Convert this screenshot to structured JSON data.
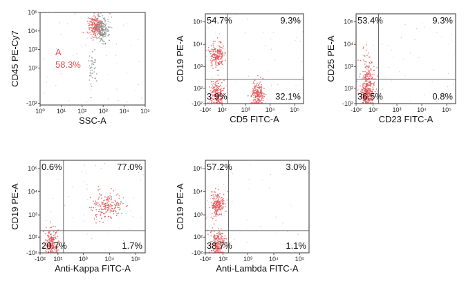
{
  "chart_data": [
    {
      "type": "scatter",
      "xlabel": "SSC-A",
      "ylabel": "CD45 PE-Cy7",
      "x_scale": "log",
      "y_scale": "log",
      "x_ticks": [
        "10⁰",
        "10¹",
        "10²",
        "10³",
        "10⁴",
        "10⁵"
      ],
      "y_ticks": [
        "10⁵",
        "10⁴",
        "10³",
        "10²",
        "-10²"
      ],
      "gate": {
        "name": "A",
        "value": "58.3%"
      },
      "clusters": [
        {
          "x": 420,
          "y": 18000,
          "color": "#e05050",
          "label": "A"
        },
        {
          "x": 900,
          "y": 12000,
          "color": "#888888"
        },
        {
          "x": 300,
          "y": 130,
          "color": "#888888"
        }
      ]
    },
    {
      "type": "scatter",
      "xlabel": "CD5 FITC-A",
      "ylabel": "CD19 PE-A",
      "x_ticks": [
        "-10²",
        "10²",
        "10³",
        "10⁴",
        "10⁵"
      ],
      "y_ticks": [
        "10⁵",
        "10⁴",
        "10³",
        "10²",
        "-10²"
      ],
      "quadrants": {
        "top_left": "54.7%",
        "top_right": "9.3%",
        "bottom_left": "3.9%",
        "bottom_right": "32.1%"
      },
      "clusters": [
        {
          "x": 40,
          "y": 3000
        },
        {
          "x": 3000,
          "y": 30
        },
        {
          "x": 40,
          "y": 30
        }
      ]
    },
    {
      "type": "scatter",
      "xlabel": "CD23 FITC-A",
      "ylabel": "CD25 PE-A",
      "x_ticks": [
        "-10²",
        "10²",
        "10³",
        "10⁴",
        "10⁵"
      ],
      "y_ticks": [
        "10⁵",
        "10⁴",
        "10³",
        "10²",
        "-10²"
      ],
      "quadrants": {
        "top_left": "53.4%",
        "top_right": "9.3%",
        "bottom_left": "36.5%",
        "bottom_right": "0.8%"
      },
      "clusters": [
        {
          "x": 40,
          "y": 250
        },
        {
          "x": 30,
          "y": 30
        }
      ]
    },
    {
      "type": "scatter",
      "xlabel": "Anti-Kappa FITC-A",
      "ylabel": "CD19 PE-A",
      "x_ticks": [
        "-10²",
        "10²",
        "10³",
        "10⁴",
        "10⁵"
      ],
      "y_ticks": [
        "10⁵",
        "10⁴",
        "10³",
        "10²",
        "-10²"
      ],
      "quadrants": {
        "top_left": "0.6%",
        "top_right": "77.0%",
        "bottom_left": "20.7%",
        "bottom_right": "1.7%"
      },
      "clusters": [
        {
          "x": 8000,
          "y": 2500
        },
        {
          "x": 30,
          "y": 30
        }
      ]
    },
    {
      "type": "scatter",
      "xlabel": "Anti-Lambda FITC-A",
      "ylabel": "CD19 PE-A",
      "x_ticks": [
        "-10²",
        "10²",
        "10³",
        "10⁴",
        "10⁵"
      ],
      "y_ticks": [
        "10⁵",
        "10⁴",
        "10³",
        "10²",
        "-10²"
      ],
      "quadrants": {
        "top_left": "57.2%",
        "top_right": "3.0%",
        "bottom_left": "38.7%",
        "bottom_right": "1.1%"
      },
      "clusters": [
        {
          "x": 40,
          "y": 2500
        },
        {
          "x": 40,
          "y": 30
        }
      ]
    }
  ],
  "colors": {
    "dots": "#e05050",
    "gray": "#888888",
    "axis": "#333333"
  }
}
